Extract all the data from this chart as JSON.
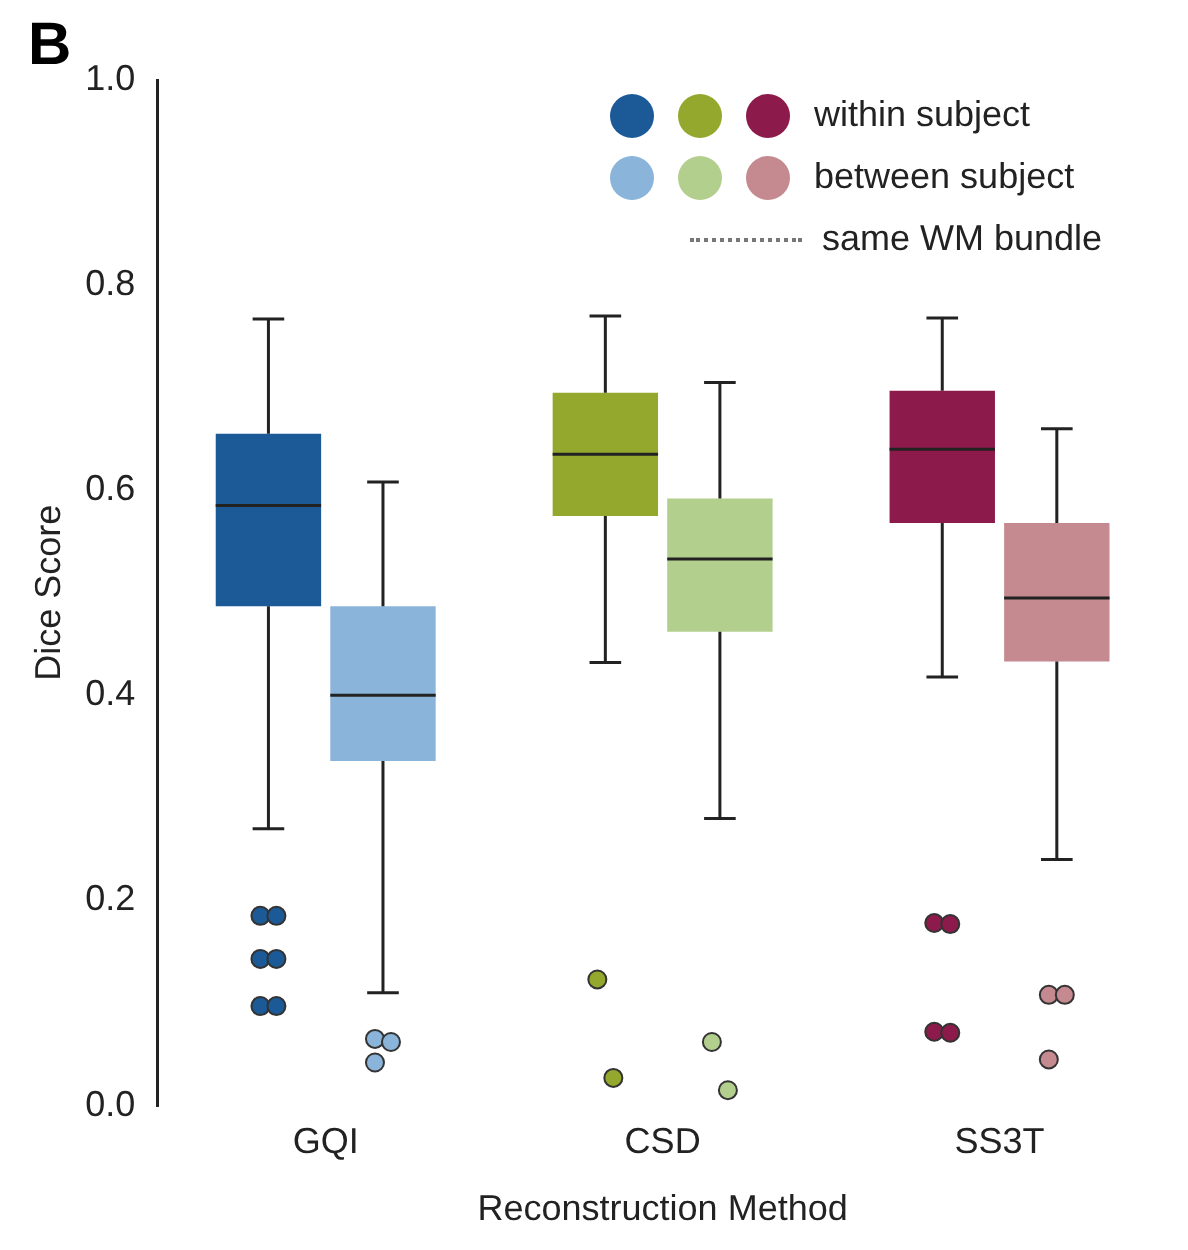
{
  "chart_data": {
    "type": "box",
    "ylabel": "Dice Score",
    "xlabel": "Reconstruction Method",
    "annotations": [
      "B",
      "same WM bundle"
    ],
    "categories": [
      "GQI",
      "CSD",
      "SS3T"
    ],
    "ylim": [
      0,
      1
    ],
    "yticks": [
      {
        "value": 0,
        "label": "0.0"
      },
      {
        "value": 0.2,
        "label": "0.2"
      },
      {
        "value": 0.4,
        "label": "0.4"
      },
      {
        "value": 0.6,
        "label": "0.6"
      },
      {
        "value": 0.8,
        "label": "0.8"
      },
      {
        "value": 1,
        "label": "1.0"
      }
    ],
    "grid": false,
    "legend": "top right",
    "marker": "circle",
    "series": [
      {
        "name": "within subject",
        "colors": [
          "#1b5a96",
          "#93a82c",
          "#8c1a4b"
        ],
        "boxes": [
          {
            "low": 0.27,
            "q1": 0.487,
            "median": 0.585,
            "q3": 0.655,
            "high": 0.767,
            "outliers": [
              0.185,
              0.185,
              0.143,
              0.143,
              0.097,
              0.097
            ]
          },
          {
            "low": 0.432,
            "q1": 0.575,
            "median": 0.635,
            "q3": 0.695,
            "high": 0.77,
            "outliers": [
              0.123,
              0.027
            ]
          },
          {
            "low": 0.418,
            "q1": 0.568,
            "median": 0.64,
            "q3": 0.697,
            "high": 0.768,
            "outliers": [
              0.178,
              0.177,
              0.072,
              0.071
            ]
          }
        ]
      },
      {
        "name": "between subject",
        "colors": [
          "#8ab4d9",
          "#b3cf8d",
          "#c48a8f"
        ],
        "boxes": [
          {
            "low": 0.11,
            "q1": 0.336,
            "median": 0.4,
            "q3": 0.487,
            "high": 0.608,
            "outliers": [
              0.065,
              0.062,
              0.042
            ]
          },
          {
            "low": 0.28,
            "q1": 0.462,
            "median": 0.533,
            "q3": 0.592,
            "high": 0.705,
            "outliers": [
              0.062,
              0.015
            ]
          },
          {
            "low": 0.24,
            "q1": 0.433,
            "median": 0.495,
            "q3": 0.568,
            "high": 0.66,
            "outliers": [
              0.108,
              0.108,
              0.045
            ]
          }
        ]
      }
    ]
  }
}
